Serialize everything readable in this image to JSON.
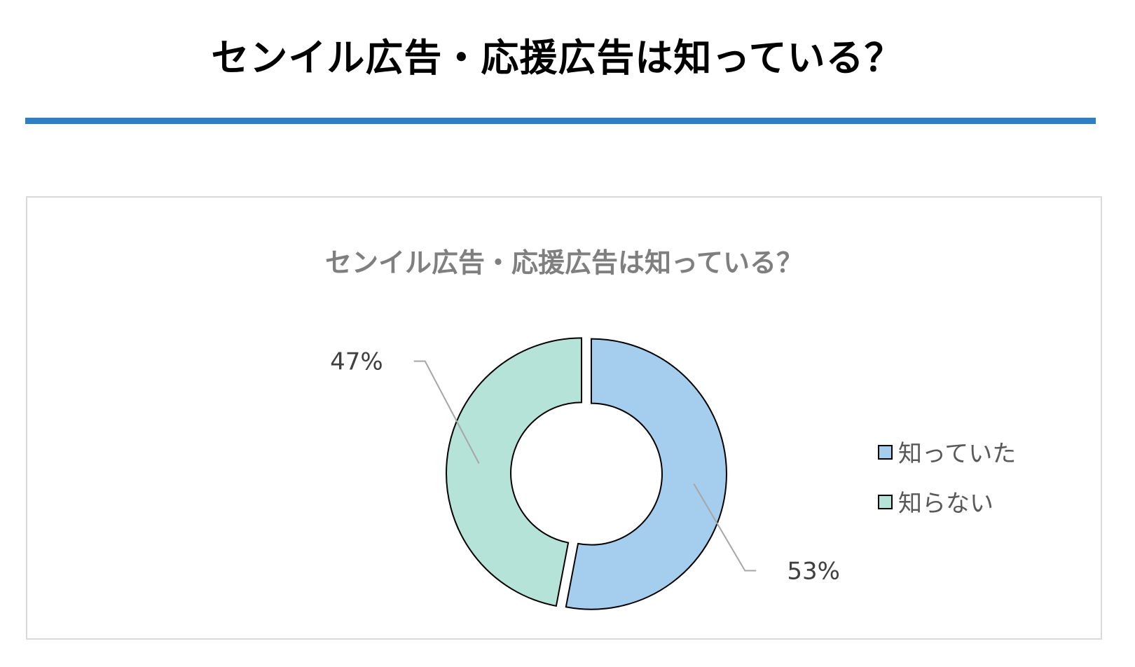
{
  "header": {
    "title": "センイル広告・応援広告は知っている？"
  },
  "colors": {
    "accent_rule": "#2e7fc4",
    "slice_known": "#a4cdee",
    "slice_unknown": "#b5e3d8",
    "stroke": "#000000",
    "leader": "#a6a6a6"
  },
  "chart_data": {
    "type": "pie",
    "variant": "doughnut",
    "title": "センイル広告・応援広告は知っている？",
    "categories": [
      "知っていた",
      "知らない"
    ],
    "values": [
      53,
      47
    ],
    "data_labels": [
      "53%",
      "47%"
    ],
    "legend_position": "right",
    "exploded": true
  }
}
